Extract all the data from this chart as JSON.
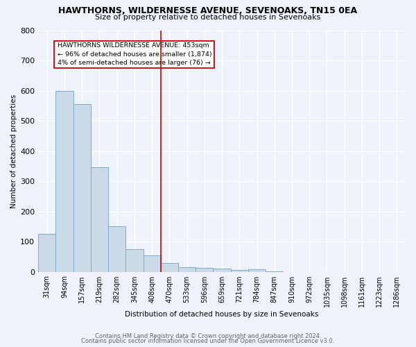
{
  "title": "HAWTHORNS, WILDERNESSE AVENUE, SEVENOAKS, TN15 0EA",
  "subtitle": "Size of property relative to detached houses in Sevenoaks",
  "xlabel": "Distribution of detached houses by size in Sevenoaks",
  "ylabel": "Number of detached properties",
  "categories": [
    "31sqm",
    "94sqm",
    "157sqm",
    "219sqm",
    "282sqm",
    "345sqm",
    "408sqm",
    "470sqm",
    "533sqm",
    "596sqm",
    "659sqm",
    "721sqm",
    "784sqm",
    "847sqm",
    "910sqm",
    "972sqm",
    "1035sqm",
    "1098sqm",
    "1161sqm",
    "1223sqm",
    "1286sqm"
  ],
  "values": [
    125,
    600,
    555,
    347,
    150,
    75,
    55,
    30,
    15,
    12,
    10,
    5,
    8,
    2,
    0,
    0,
    0,
    0,
    0,
    0,
    0
  ],
  "bar_color": "#ccd9e8",
  "bar_edge_color": "#7aabcc",
  "red_line_x": 7.0,
  "annotation_text_line1": "HAWTHORNS WILDERNESSE AVENUE: 453sqm",
  "annotation_text_line2": "← 96% of detached houses are smaller (1,874)",
  "annotation_text_line3": "4% of semi-detached houses are larger (76) →",
  "red_line_color": "#cc0000",
  "background_color": "#eef2fa",
  "grid_color": "#ffffff",
  "footnote1": "Contains HM Land Registry data © Crown copyright and database right 2024.",
  "footnote2": "Contains public sector information licensed under the Open Government Licence v3.0.",
  "ylim": [
    0,
    800
  ],
  "yticks": [
    0,
    100,
    200,
    300,
    400,
    500,
    600,
    700,
    800
  ]
}
